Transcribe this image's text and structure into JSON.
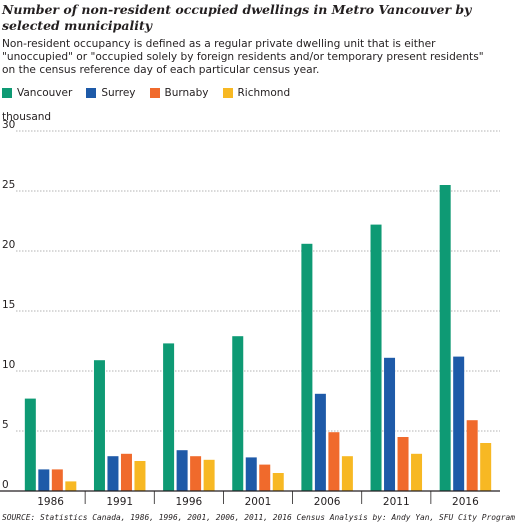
{
  "title": "Number of non-resident occupied dwellings in Metro Vancouver by selected municipality",
  "subtitle": "Non-resident occupancy is defined as a regular private dwelling unit that is either \"unoccupied\" or \"occupied solely by foreign residents and/or temporary present residents\" on the census reference day of each particular census year.",
  "unit_label": "thousand",
  "source": "SOURCE: Statistics Canada, 1986, 1996, 2001, 2006, 2011, 2016 Census Analysis by: Andy Yan, SFU City Program",
  "colors": {
    "Vancouver": "#0e9a74",
    "Surrey": "#1e5aa8",
    "Burnaby": "#f06a2c",
    "Richmond": "#f7b823",
    "grid": "#9a9a9a",
    "axis": "#231f20"
  },
  "chart_data": {
    "type": "bar",
    "categories": [
      "1986",
      "1991",
      "1996",
      "2001",
      "2006",
      "2011",
      "2016"
    ],
    "series": [
      {
        "name": "Vancouver",
        "values": [
          7.7,
          10.9,
          12.3,
          12.9,
          20.6,
          22.2,
          25.5
        ]
      },
      {
        "name": "Surrey",
        "values": [
          1.8,
          2.9,
          3.4,
          2.8,
          8.1,
          11.1,
          11.2
        ]
      },
      {
        "name": "Burnaby",
        "values": [
          1.8,
          3.1,
          2.9,
          2.2,
          4.9,
          4.5,
          5.9
        ]
      },
      {
        "name": "Richmond",
        "values": [
          0.8,
          2.5,
          2.6,
          1.5,
          2.9,
          3.1,
          4.0
        ]
      }
    ],
    "ylabel": "thousand",
    "ylim": [
      0,
      30
    ],
    "yticks": [
      "0",
      "5",
      "10",
      "15",
      "20",
      "25",
      "30"
    ],
    "grid": true,
    "legend_position": "top-left"
  }
}
